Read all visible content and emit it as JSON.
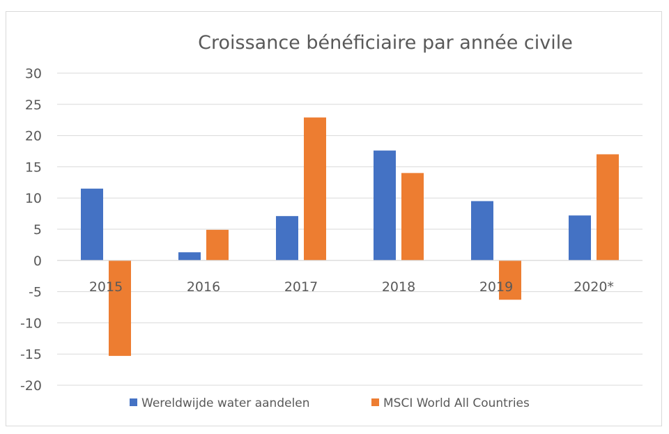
{
  "chart_data": {
    "type": "bar",
    "title": "Croissance bénéficiaire par année civile",
    "categories": [
      "2015",
      "2016",
      "2017",
      "2018",
      "2019",
      "2020*"
    ],
    "series": [
      {
        "name": "Wereldwijde water aandelen",
        "color": "#4472C4",
        "values": [
          11.5,
          1.3,
          7.1,
          17.6,
          9.5,
          7.2
        ]
      },
      {
        "name": "MSCI World All Countries",
        "color": "#ED7D31",
        "values": [
          -15.3,
          4.9,
          22.9,
          14.0,
          -6.3,
          17.0
        ]
      }
    ],
    "ylim": [
      -20,
      30
    ],
    "yticks": [
      30,
      25,
      20,
      15,
      10,
      5,
      0,
      -5,
      -10,
      -15,
      -20
    ],
    "grid": true,
    "legend": "bottom"
  }
}
